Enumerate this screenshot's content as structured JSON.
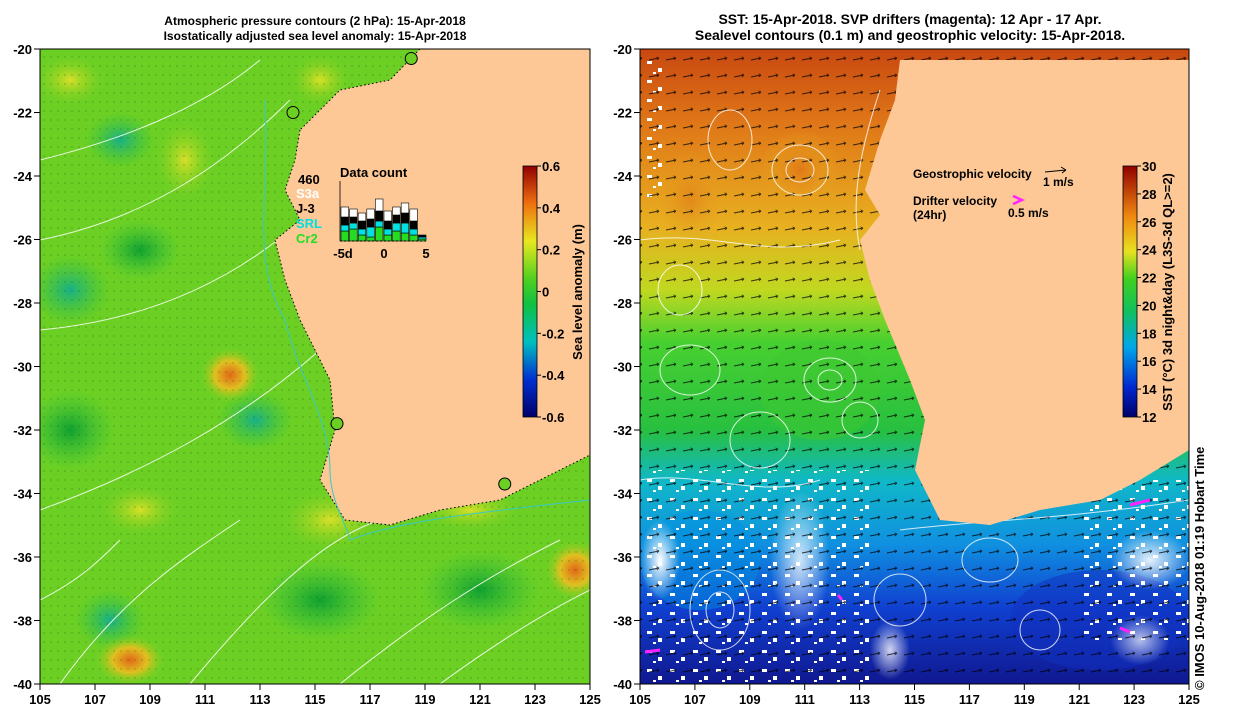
{
  "left_panel": {
    "title_line1": "Atmospheric pressure contours (2 hPa): 15-Apr-2018",
    "title_line2": "Isostatically adjusted sea level anomaly: 15-Apr-2018",
    "x_ticks": [
      "105",
      "107",
      "109",
      "111",
      "113",
      "115",
      "117",
      "119",
      "121",
      "123",
      "125"
    ],
    "y_ticks": [
      "-20",
      "-22",
      "-24",
      "-26",
      "-28",
      "-30",
      "-32",
      "-34",
      "-36",
      "-38",
      "-40"
    ],
    "colorbar": {
      "label": "Sea level anomaly (m)",
      "ticks": [
        "0.6",
        "0.4",
        "0.2",
        "0",
        "-0.2",
        "-0.4",
        "-0.6"
      ],
      "range": [
        -0.6,
        0.6
      ]
    },
    "data_count": {
      "title": "Data count",
      "total": "460",
      "missions": [
        {
          "name": "S3a",
          "color": "#ffffff"
        },
        {
          "name": "J-3",
          "color": "#000000"
        },
        {
          "name": "SRL",
          "color": "#00e0e0"
        },
        {
          "name": "Cr2",
          "color": "#22dd22"
        }
      ],
      "axis_ticks": [
        "-5d",
        "0",
        "5"
      ]
    },
    "tide_gauges": [
      {
        "lon": 118.5,
        "lat": -20.3
      },
      {
        "lon": 114.2,
        "lat": -22.0
      },
      {
        "lon": 115.8,
        "lat": -31.8
      },
      {
        "lon": 121.9,
        "lat": -33.7
      }
    ]
  },
  "right_panel": {
    "title_line1": "SST: 15-Apr-2018. SVP drifters (magenta): 12 Apr - 17 Apr.",
    "title_line2": "Sealevel contours (0.1 m) and geostrophic velocity: 15-Apr-2018.",
    "x_ticks": [
      "105",
      "107",
      "109",
      "111",
      "113",
      "115",
      "117",
      "119",
      "121",
      "123",
      "125"
    ],
    "y_ticks": [
      "-20",
      "-22",
      "-24",
      "-26",
      "-28",
      "-30",
      "-32",
      "-34",
      "-36",
      "-38",
      "-40"
    ],
    "colorbar": {
      "label": "SST (°C) 3d night&day (L3S-3d QL>=2)",
      "ticks": [
        "30",
        "28",
        "26",
        "24",
        "22",
        "20",
        "18",
        "16",
        "14",
        "12"
      ],
      "range": [
        12,
        30
      ]
    },
    "legend": {
      "geostrophic_label": "Geostrophic velocity",
      "geostrophic_scale": "1 m/s",
      "drifter_label": "Drifter velocity",
      "drifter_label2": "(24hr)",
      "drifter_scale": "0.5 m/s"
    }
  },
  "copyright": "© IMOS 10-Aug-2018 01:19 Hobart Time",
  "colors": {
    "land": "#fdc896",
    "coast_line": "#38c8c8",
    "drifter": "#ff22ff"
  }
}
